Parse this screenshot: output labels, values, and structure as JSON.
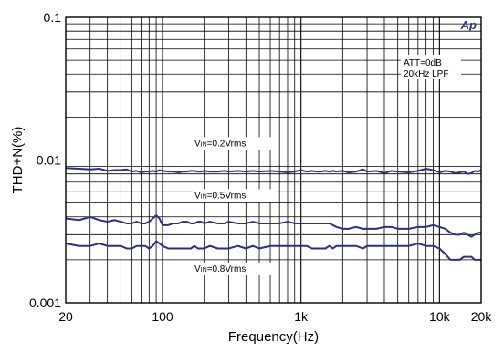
{
  "chart_data": {
    "type": "line",
    "ylabel": "THD+N(%)",
    "xlabel": "Frequency(Hz)",
    "x_scale": "log",
    "y_scale": "log",
    "xlim": [
      20,
      20000
    ],
    "ylim": [
      0.001,
      0.1
    ],
    "grid": true,
    "x_tick_labels": [
      {
        "value": 20,
        "label": "20"
      },
      {
        "value": 100,
        "label": "100"
      },
      {
        "value": 1000,
        "label": "1k"
      },
      {
        "value": 10000,
        "label": "10k"
      },
      {
        "value": 20000,
        "label": "20k"
      }
    ],
    "y_tick_labels": [
      {
        "value": 0.1,
        "label": "0.1"
      },
      {
        "value": 0.01,
        "label": "0.01"
      },
      {
        "value": 0.001,
        "label": "0.001"
      }
    ],
    "logo": "Ap",
    "conditions": [
      "ATT=0dB",
      "20kHz LPF"
    ],
    "series": [
      {
        "name": "VIN=0.2Vrms",
        "label_prefix": "V",
        "label_subscript": "IN",
        "label_suffix": "=0.2Vrms",
        "color": "#2b2f87",
        "x": [
          20,
          25,
          30,
          35,
          40,
          45,
          50,
          55,
          60,
          65,
          70,
          75,
          80,
          85,
          90,
          95,
          100,
          110,
          120,
          130,
          140,
          150,
          160,
          170,
          180,
          190,
          200,
          220,
          250,
          280,
          300,
          350,
          400,
          450,
          500,
          600,
          700,
          800,
          900,
          1000,
          1100,
          1200,
          1300,
          1400,
          1500,
          1600,
          1700,
          1800,
          2000,
          2200,
          2500,
          2800,
          3000,
          3500,
          4000,
          4500,
          5000,
          6000,
          7000,
          8000,
          9000,
          10000,
          11000,
          12000,
          13000,
          14000,
          15000,
          16000,
          17000,
          18000,
          19000,
          20000
        ],
        "y": [
          0.0088,
          0.0087,
          0.0086,
          0.0087,
          0.0084,
          0.0085,
          0.0085,
          0.0086,
          0.0083,
          0.0084,
          0.0082,
          0.0083,
          0.0083,
          0.0084,
          0.0083,
          0.0085,
          0.0084,
          0.0083,
          0.0083,
          0.0082,
          0.0083,
          0.0083,
          0.0084,
          0.0084,
          0.0083,
          0.0083,
          0.0084,
          0.0083,
          0.0083,
          0.0084,
          0.0083,
          0.0084,
          0.0083,
          0.0084,
          0.0083,
          0.0084,
          0.0083,
          0.0082,
          0.0083,
          0.0085,
          0.0083,
          0.0084,
          0.0083,
          0.0083,
          0.0084,
          0.0083,
          0.0084,
          0.0083,
          0.0084,
          0.0082,
          0.0083,
          0.0086,
          0.0083,
          0.0084,
          0.0081,
          0.0084,
          0.0083,
          0.0082,
          0.0084,
          0.0087,
          0.0085,
          0.0082,
          0.0084,
          0.0083,
          0.0081,
          0.0082,
          0.0083,
          0.008,
          0.0081,
          0.0084,
          0.0083,
          0.0085
        ]
      },
      {
        "name": "VIN=0.5Vrms",
        "label_prefix": "V",
        "label_subscript": "IN",
        "label_suffix": "=0.5Vrms",
        "color": "#2b2f87",
        "x": [
          20,
          25,
          30,
          35,
          40,
          45,
          50,
          55,
          60,
          65,
          70,
          75,
          80,
          85,
          90,
          95,
          100,
          110,
          120,
          130,
          140,
          150,
          160,
          170,
          180,
          190,
          200,
          220,
          250,
          280,
          300,
          350,
          400,
          450,
          500,
          600,
          700,
          800,
          900,
          1000,
          1100,
          1200,
          1300,
          1400,
          1500,
          1600,
          1700,
          1800,
          2000,
          2200,
          2500,
          2800,
          3000,
          3500,
          4000,
          4500,
          5000,
          6000,
          7000,
          8000,
          9000,
          10000,
          11000,
          12000,
          13000,
          14000,
          15000,
          16000,
          17000,
          18000,
          19000,
          20000
        ],
        "y": [
          0.0039,
          0.0038,
          0.004,
          0.0038,
          0.0037,
          0.0038,
          0.0037,
          0.0036,
          0.0036,
          0.0037,
          0.0036,
          0.0036,
          0.0037,
          0.0039,
          0.0041,
          0.0039,
          0.0035,
          0.0035,
          0.0036,
          0.0036,
          0.0037,
          0.0037,
          0.0036,
          0.0036,
          0.0037,
          0.0037,
          0.0036,
          0.0037,
          0.0036,
          0.0036,
          0.0037,
          0.0036,
          0.0036,
          0.0037,
          0.0036,
          0.0036,
          0.0036,
          0.0037,
          0.0036,
          0.0036,
          0.0036,
          0.0036,
          0.0036,
          0.0036,
          0.0036,
          0.0036,
          0.0035,
          0.0034,
          0.0033,
          0.0033,
          0.0034,
          0.0033,
          0.0033,
          0.0033,
          0.0034,
          0.0034,
          0.0033,
          0.0033,
          0.0034,
          0.0034,
          0.0035,
          0.0034,
          0.0033,
          0.0031,
          0.003,
          0.003,
          0.0031,
          0.003,
          0.0029,
          0.003,
          0.0031,
          0.0031
        ]
      },
      {
        "name": "VIN=0.8Vrms",
        "label_prefix": "V",
        "label_subscript": "IN",
        "label_suffix": "=0.8Vrms",
        "color": "#2b2f87",
        "x": [
          20,
          25,
          30,
          35,
          40,
          45,
          50,
          55,
          60,
          65,
          70,
          75,
          80,
          85,
          90,
          95,
          100,
          110,
          120,
          130,
          140,
          150,
          160,
          170,
          180,
          190,
          200,
          220,
          250,
          280,
          300,
          350,
          400,
          450,
          500,
          600,
          700,
          800,
          900,
          1000,
          1100,
          1200,
          1300,
          1400,
          1500,
          1600,
          1700,
          1800,
          2000,
          2200,
          2500,
          2800,
          3000,
          3500,
          4000,
          4500,
          5000,
          6000,
          7000,
          8000,
          9000,
          10000,
          11000,
          12000,
          13000,
          14000,
          15000,
          16000,
          17000,
          18000,
          19000,
          20000
        ],
        "y": [
          0.0026,
          0.0025,
          0.0025,
          0.0026,
          0.0025,
          0.0025,
          0.0025,
          0.0024,
          0.0024,
          0.0025,
          0.0025,
          0.0025,
          0.0024,
          0.0025,
          0.0027,
          0.0026,
          0.0025,
          0.0024,
          0.0024,
          0.0024,
          0.0024,
          0.0024,
          0.0024,
          0.0025,
          0.0024,
          0.0024,
          0.0024,
          0.0025,
          0.0024,
          0.0024,
          0.0024,
          0.0025,
          0.0024,
          0.0025,
          0.0024,
          0.0025,
          0.0025,
          0.0025,
          0.0025,
          0.0025,
          0.0025,
          0.0024,
          0.0024,
          0.0024,
          0.0024,
          0.0025,
          0.0024,
          0.0025,
          0.0025,
          0.0025,
          0.0025,
          0.0024,
          0.0025,
          0.0025,
          0.0025,
          0.0025,
          0.0025,
          0.0025,
          0.0026,
          0.0025,
          0.0025,
          0.0024,
          0.0022,
          0.002,
          0.002,
          0.002,
          0.0021,
          0.0021,
          0.0021,
          0.002,
          0.002,
          0.002
        ]
      }
    ]
  }
}
